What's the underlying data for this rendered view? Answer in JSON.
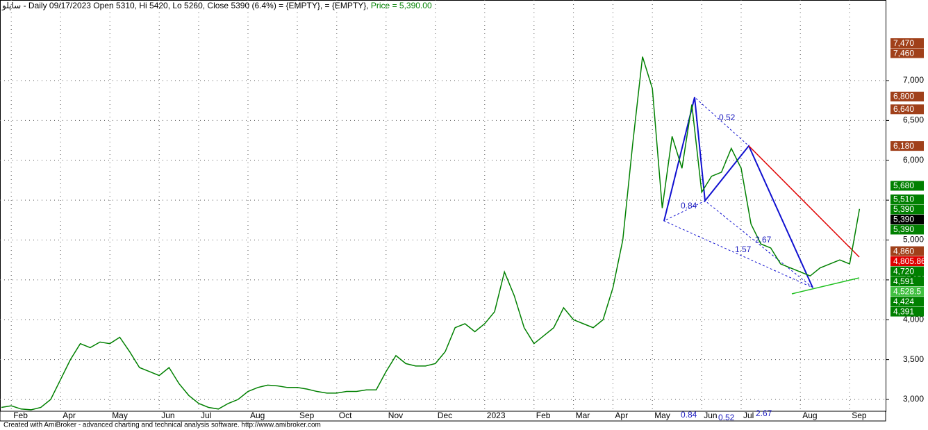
{
  "chart_data": {
    "type": "line",
    "title": "ساپلو - Daily 09/17/2023 Open 5310, Hi 5420, Lo 5260, Close 5390 (6.4%)   = {EMPTY},   = {EMPTY},",
    "price_caption": "Price = 5,390.00",
    "footer": "Created with AmiBroker - advanced charting and technical analysis software. http://www.amibroker.com",
    "categories": [
      null,
      "Feb",
      null,
      null,
      null,
      null,
      "Apr",
      null,
      null,
      null,
      null,
      "May",
      null,
      null,
      null,
      null,
      "Jun",
      null,
      null,
      null,
      "Jul",
      null,
      null,
      null,
      null,
      "Aug",
      null,
      null,
      null,
      null,
      "Sep",
      null,
      null,
      null,
      "Oct",
      null,
      null,
      null,
      null,
      "Nov",
      null,
      null,
      null,
      null,
      "Dec",
      null,
      null,
      null,
      null,
      "2023",
      null,
      null,
      null,
      null,
      "Feb",
      null,
      null,
      null,
      "Mar",
      null,
      null,
      null,
      "Apr",
      null,
      null,
      null,
      "May",
      null,
      null,
      null,
      null,
      "Jun",
      null,
      null,
      null,
      "Jul",
      null,
      null,
      null,
      null,
      null,
      "Aug",
      null,
      null,
      null,
      null,
      "Sep",
      null
    ],
    "series": [
      {
        "name": "Close",
        "color": "#008000",
        "values": [
          2900,
          2920,
          2880,
          2870,
          2900,
          3000,
          3250,
          3500,
          3700,
          3650,
          3720,
          3700,
          3780,
          3600,
          3400,
          3350,
          3300,
          3400,
          3200,
          3050,
          2950,
          2900,
          2880,
          2950,
          3000,
          3100,
          3150,
          3180,
          3170,
          3150,
          3150,
          3130,
          3100,
          3080,
          3080,
          3100,
          3100,
          3120,
          3120,
          3350,
          3550,
          3450,
          3420,
          3420,
          3450,
          3600,
          3900,
          3950,
          3850,
          3950,
          4100,
          4600,
          4300,
          3900,
          3700,
          3800,
          3900,
          4150,
          4000,
          3950,
          3900,
          4000,
          4400,
          5000,
          6200,
          7300,
          6900,
          5400,
          6300,
          5900,
          6700,
          5600,
          5800,
          5850,
          6150,
          5900,
          5200,
          4950,
          4900,
          4700,
          4650,
          4600,
          4550,
          4650,
          4700,
          4750,
          4700,
          5390
        ]
      }
    ],
    "ylim": [
      2852,
      8011
    ],
    "yticks": [
      {
        "value": 3000,
        "label": "3,000"
      },
      {
        "value": 3500,
        "label": "3,500"
      },
      {
        "value": 4000,
        "label": "4,000"
      },
      {
        "value": 4500,
        "label": "4,500"
      },
      {
        "value": 5000,
        "label": "5,000"
      },
      {
        "value": 5500,
        "label": "5,500"
      },
      {
        "value": 6000,
        "label": "6,000"
      },
      {
        "value": 6500,
        "label": "6,500"
      },
      {
        "value": 7000,
        "label": "7,000"
      }
    ],
    "grid": true,
    "price_labels": [
      {
        "value": 7470,
        "label": "7,470",
        "color": "#a0401a"
      },
      {
        "value": 7460,
        "label": "7,460",
        "color": "#a0401a"
      },
      {
        "value": 6800,
        "label": "6,800",
        "color": "#a0401a"
      },
      {
        "value": 6640,
        "label": "6,640",
        "color": "#a0401a"
      },
      {
        "value": 6180,
        "label": "6,180",
        "color": "#a0401a"
      },
      {
        "value": 5680,
        "label": "5,680",
        "color": "#008000"
      },
      {
        "value": 5510,
        "label": "5,510",
        "color": "#008000"
      },
      {
        "value": 5390,
        "label": "5,390",
        "color": "#008000"
      },
      {
        "value": 5390,
        "label": "5,390",
        "color": "#000000"
      },
      {
        "value": 5390,
        "label": "5,390",
        "color": "#008000"
      },
      {
        "value": 4860,
        "label": "4,860",
        "color": "#a0401a"
      },
      {
        "value": 4805.86,
        "label": "4,805.86",
        "color": "#e00000"
      },
      {
        "value": 4720,
        "label": "4,720",
        "color": "#008000"
      },
      {
        "value": 4591,
        "label": "4,591",
        "color": "#008000"
      },
      {
        "value": 4528.5,
        "label": "4,528.5",
        "color": "#40c040"
      },
      {
        "value": 4424,
        "label": "4,424",
        "color": "#008000"
      },
      {
        "value": 4391,
        "label": "4,391",
        "color": "#008000"
      }
    ],
    "annotations": [
      "0.52",
      "0.84",
      "1.57",
      "2.67"
    ]
  }
}
